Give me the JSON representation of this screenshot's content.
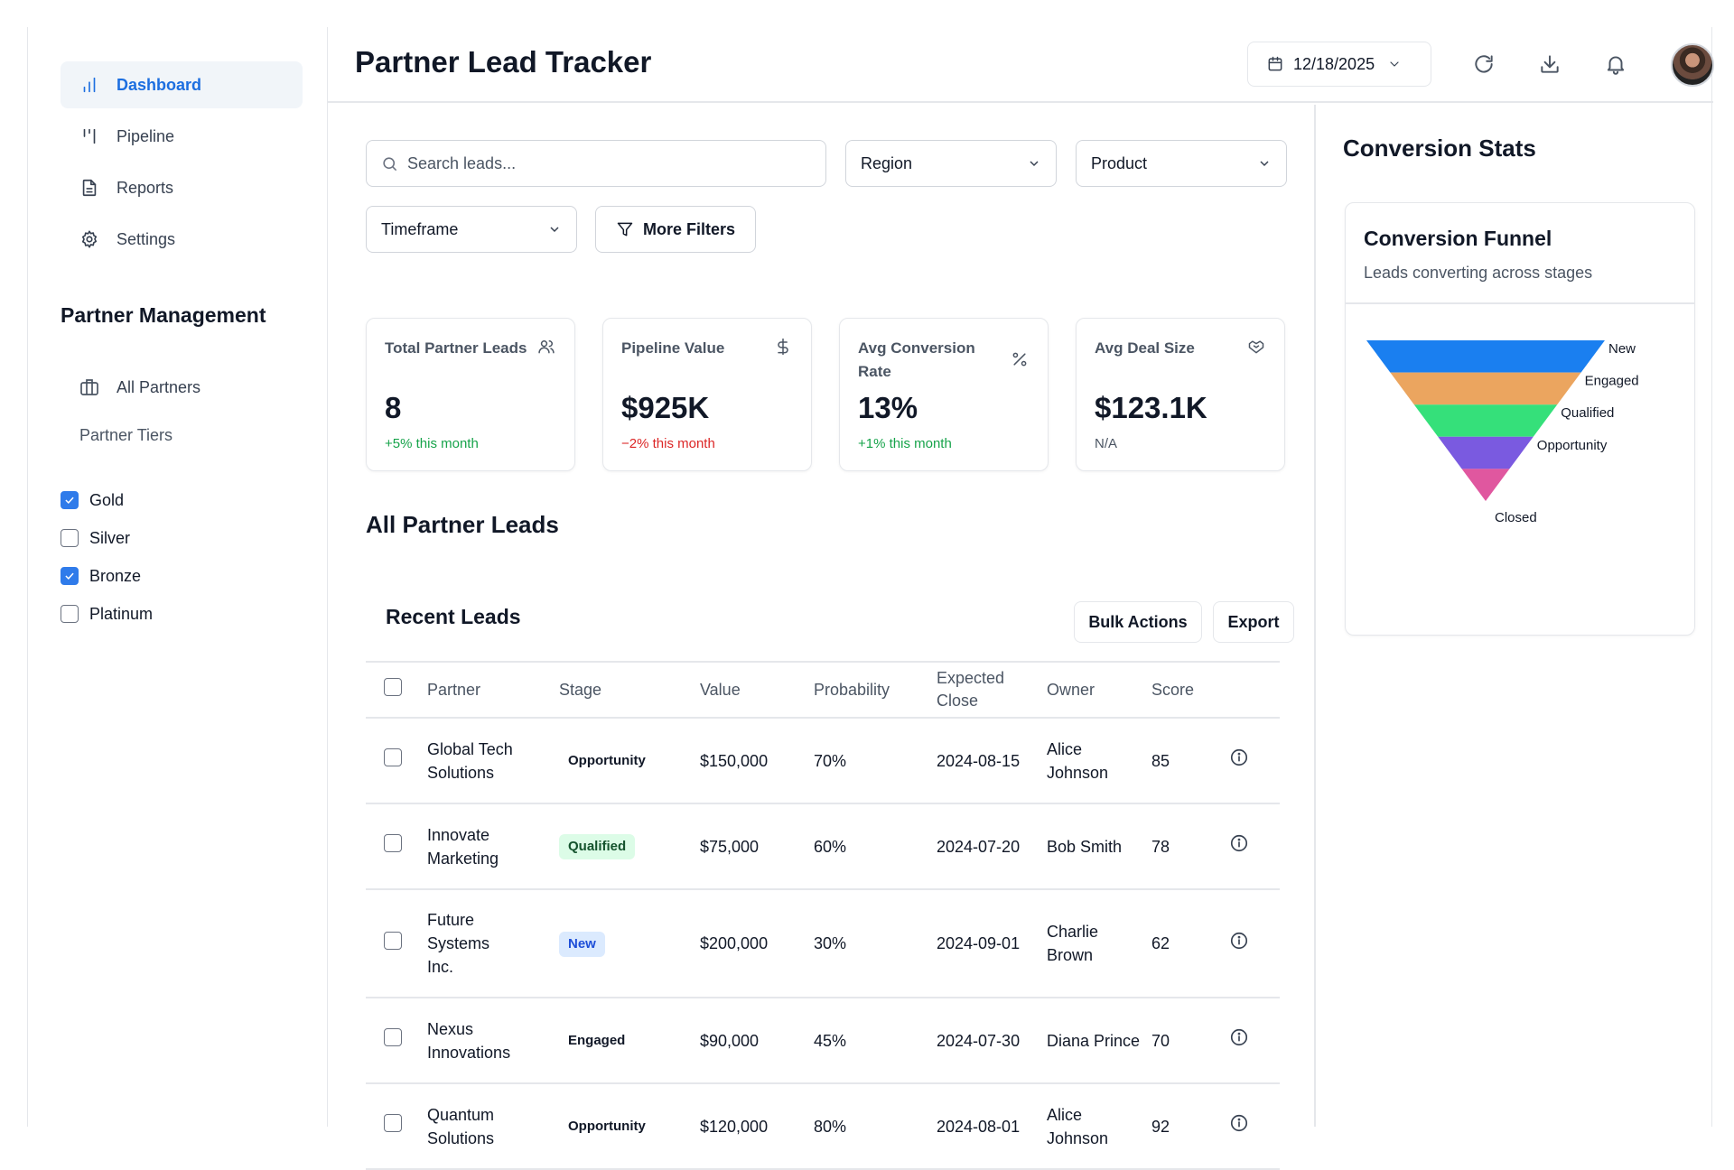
{
  "sidebar": {
    "nav": [
      {
        "label": "Dashboard",
        "icon": "bar-chart-icon",
        "active": true
      },
      {
        "label": "Pipeline",
        "icon": "pipeline-icon"
      },
      {
        "label": "Reports",
        "icon": "file-text-icon"
      },
      {
        "label": "Settings",
        "icon": "gear-icon"
      }
    ],
    "partner_management": {
      "title": "Partner Management",
      "all_partners": "All Partners",
      "tiers_label": "Partner Tiers",
      "tiers": [
        {
          "label": "Gold",
          "checked": true
        },
        {
          "label": "Silver",
          "checked": false
        },
        {
          "label": "Bronze",
          "checked": true
        },
        {
          "label": "Platinum",
          "checked": false
        }
      ]
    }
  },
  "header": {
    "title": "Partner Lead Tracker",
    "date": "12/18/2025"
  },
  "filters": {
    "search_placeholder": "Search leads...",
    "region": "Region",
    "product": "Product",
    "timeframe": "Timeframe",
    "more_filters": "More Filters"
  },
  "kpis": [
    {
      "label": "Total Partner Leads",
      "icon": "users-icon",
      "value": "8",
      "change": "+5% this month",
      "trend": "pos"
    },
    {
      "label": "Pipeline Value",
      "icon": "dollar-icon",
      "value": "$925K",
      "change": "−2% this month",
      "trend": "neg"
    },
    {
      "label": "Avg Conversion Rate",
      "icon": "percent-icon",
      "value": "13%",
      "change": "+1% this month",
      "trend": "pos"
    },
    {
      "label": "Avg Deal Size",
      "icon": "handshake-icon",
      "value": "$123.1K",
      "change": "N/A",
      "trend": "neu"
    }
  ],
  "leads_section": {
    "title": "All Partner Leads",
    "card_title": "Recent Leads",
    "bulk_actions": "Bulk Actions",
    "export": "Export",
    "columns": [
      "Partner",
      "Stage",
      "Value",
      "Probability",
      "Expected Close",
      "Owner",
      "Score"
    ],
    "rows": [
      {
        "partner": "Global Tech Solutions",
        "stage": "Opportunity",
        "value": "$150,000",
        "probability": "70%",
        "close": "2024-08-15",
        "owner": "Alice Johnson",
        "score": "85"
      },
      {
        "partner": "Innovate Marketing",
        "stage": "Qualified",
        "value": "$75,000",
        "probability": "60%",
        "close": "2024-07-20",
        "owner": "Bob Smith",
        "score": "78"
      },
      {
        "partner": "Future Systems Inc.",
        "stage": "New",
        "value": "$200,000",
        "probability": "30%",
        "close": "2024-09-01",
        "owner": "Charlie Brown",
        "score": "62"
      },
      {
        "partner": "Nexus Innovations",
        "stage": "Engaged",
        "value": "$90,000",
        "probability": "45%",
        "close": "2024-07-30",
        "owner": "Diana Prince",
        "score": "70"
      },
      {
        "partner": "Quantum Solutions",
        "stage": "Opportunity",
        "value": "$120,000",
        "probability": "80%",
        "close": "2024-08-01",
        "owner": "Alice Johnson",
        "score": "92"
      }
    ]
  },
  "conversion": {
    "title": "Conversion Stats",
    "card_title": "Conversion Funnel",
    "card_subtitle": "Leads converting across stages",
    "stages": [
      {
        "label": "New",
        "color": "#1a7ff0"
      },
      {
        "label": "Engaged",
        "color": "#eba55f"
      },
      {
        "label": "Qualified",
        "color": "#35e07a"
      },
      {
        "label": "Opportunity",
        "color": "#7a5ae0"
      },
      {
        "label": "Closed",
        "color": "#e0579f"
      }
    ]
  }
}
